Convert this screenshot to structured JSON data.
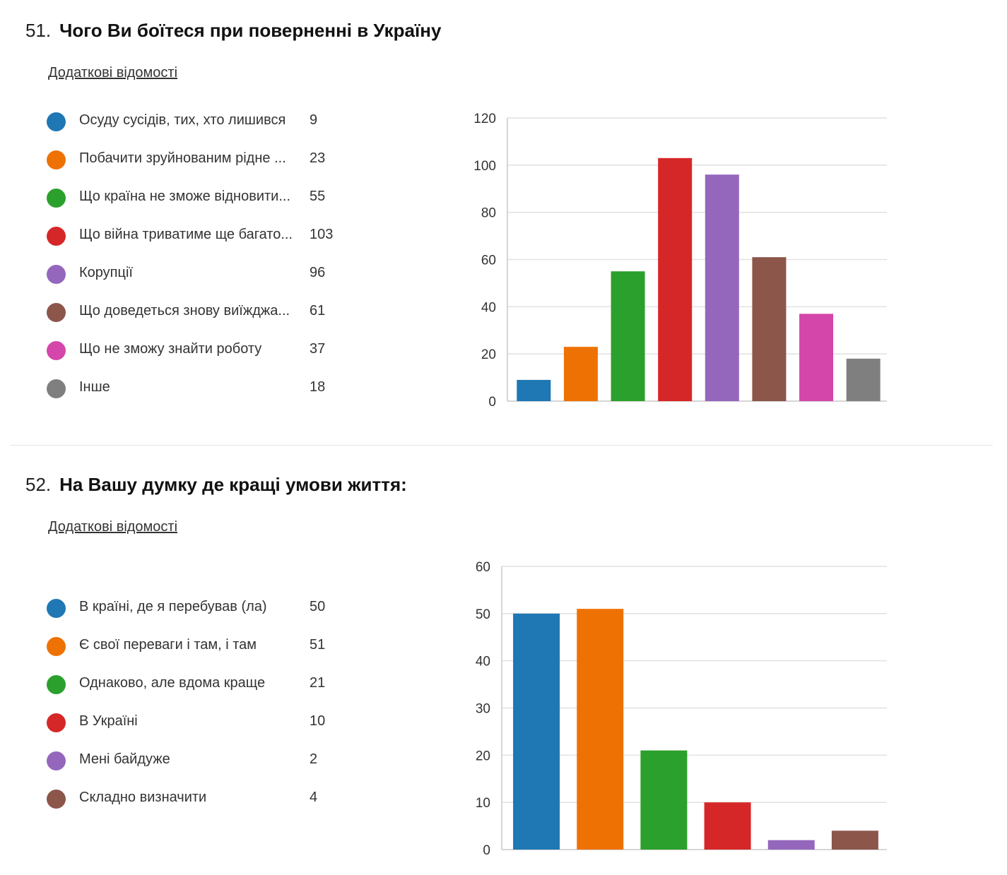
{
  "questions": [
    {
      "number": "51.",
      "title": "Чого Ви боїтеся при поверненні в Україну",
      "more_info": "Додаткові відомості",
      "legend": [
        {
          "label": "Осуду сусідів, тих, хто лишився",
          "count": "9",
          "color": "#1f77b4"
        },
        {
          "label": "Побачити зруйнованим рідне ...",
          "count": "23",
          "color": "#ee7203"
        },
        {
          "label": "Що країна не зможе відновити...",
          "count": "55",
          "color": "#2ca02c"
        },
        {
          "label": "Що війна триватиме ще багато...",
          "count": "103",
          "color": "#d62728"
        },
        {
          "label": "Корупції",
          "count": "96",
          "color": "#9467bd"
        },
        {
          "label": "Що доведеться знову виїжджа...",
          "count": "61",
          "color": "#8c564b"
        },
        {
          "label": "Що не зможу знайти роботу",
          "count": "37",
          "color": "#d446aa"
        },
        {
          "label": "Інше",
          "count": "18",
          "color": "#7f7f7f"
        }
      ]
    },
    {
      "number": "52.",
      "title": "На Вашу думку де кращі умови життя:",
      "more_info": "Додаткові відомості",
      "legend": [
        {
          "label": "В країні, де я перебував (ла)",
          "count": "50",
          "color": "#1f77b4"
        },
        {
          "label": "Є свої переваги і там, і там",
          "count": "51",
          "color": "#ee7203"
        },
        {
          "label": "Однаково, але вдома краще",
          "count": "21",
          "color": "#2ca02c"
        },
        {
          "label": "В Україні",
          "count": "10",
          "color": "#d62728"
        },
        {
          "label": "Мені байдуже",
          "count": "2",
          "color": "#9467bd"
        },
        {
          "label": "Складно визначити",
          "count": "4",
          "color": "#8c564b"
        }
      ]
    }
  ],
  "chart_data": [
    {
      "type": "bar",
      "title": "",
      "xlabel": "",
      "ylabel": "",
      "categories": [
        "Осуду сусідів, тих, хто лишився",
        "Побачити зруйнованим рідне ...",
        "Що країна не зможе відновити...",
        "Що війна триватиме ще багато...",
        "Корупції",
        "Що доведеться знову виїжджа...",
        "Що не зможу знайти роботу",
        "Інше"
      ],
      "values": [
        9,
        23,
        55,
        103,
        96,
        61,
        37,
        18
      ],
      "colors": [
        "#1f77b4",
        "#ee7203",
        "#2ca02c",
        "#d62728",
        "#9467bd",
        "#8c564b",
        "#d446aa",
        "#7f7f7f"
      ],
      "ylim": [
        0,
        120
      ],
      "yticks": [
        0,
        20,
        40,
        60,
        80,
        100,
        120
      ],
      "grid": true,
      "legend": "left"
    },
    {
      "type": "bar",
      "title": "",
      "xlabel": "",
      "ylabel": "",
      "categories": [
        "В країні, де я перебував (ла)",
        "Є свої переваги і там, і там",
        "Однаково, але вдома краще",
        "В Україні",
        "Мені байдуже",
        "Складно визначити"
      ],
      "values": [
        50,
        51,
        21,
        10,
        2,
        4
      ],
      "colors": [
        "#1f77b4",
        "#ee7203",
        "#2ca02c",
        "#d62728",
        "#9467bd",
        "#8c564b"
      ],
      "ylim": [
        0,
        60
      ],
      "yticks": [
        0,
        10,
        20,
        30,
        40,
        50,
        60
      ],
      "grid": true,
      "legend": "left"
    }
  ]
}
